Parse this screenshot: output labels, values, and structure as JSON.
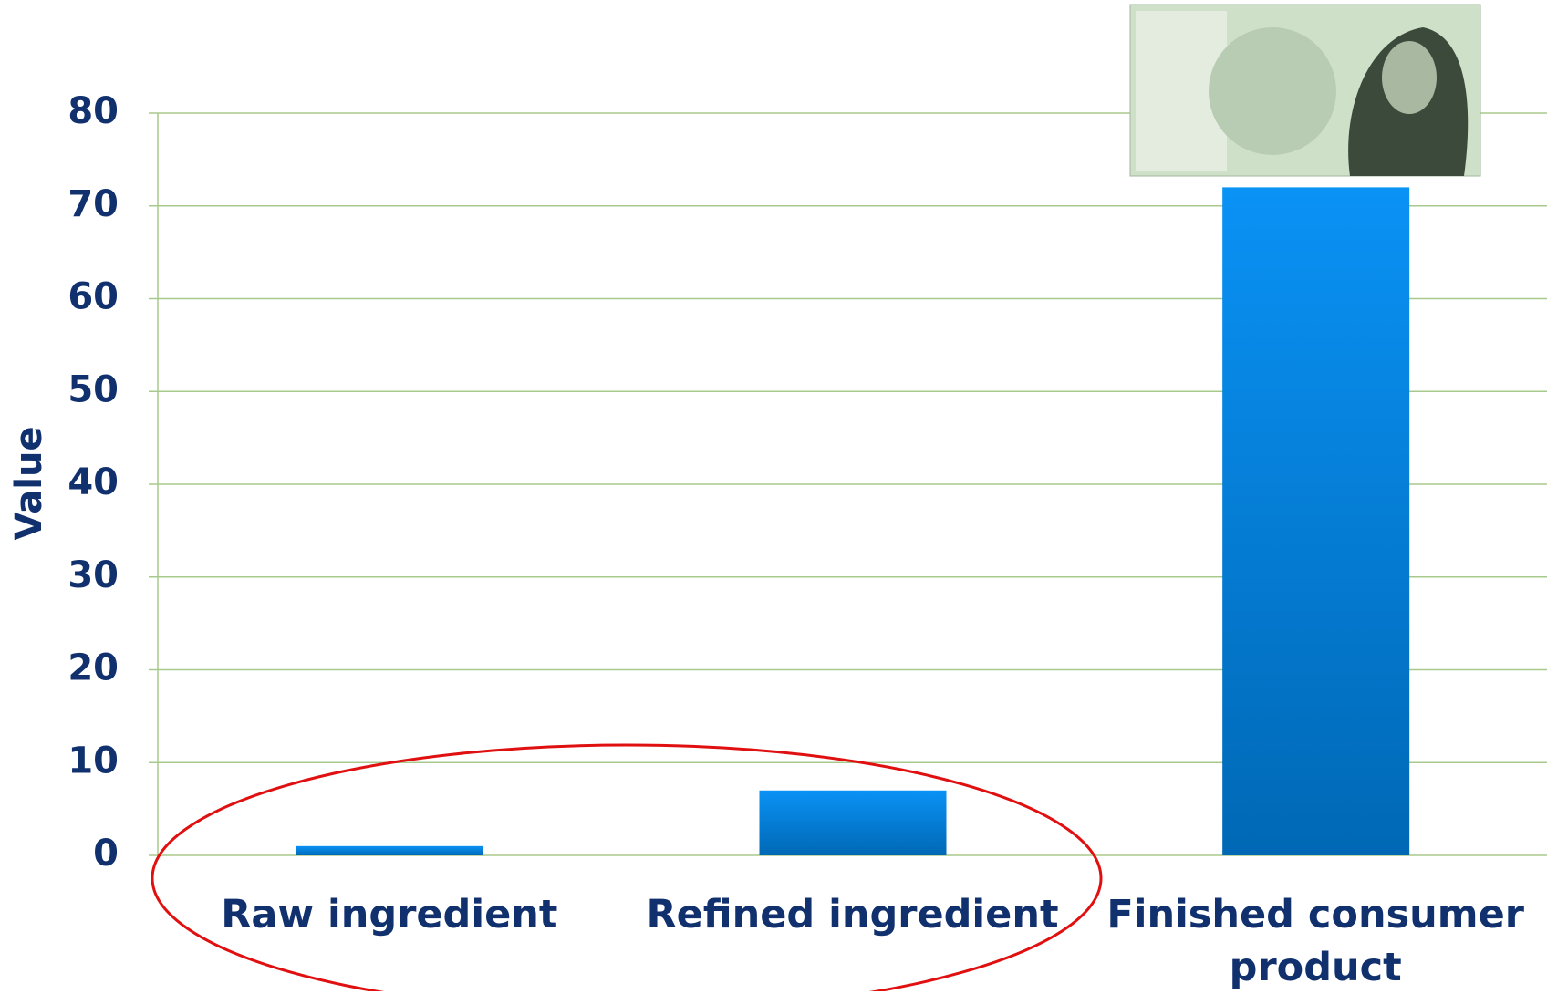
{
  "chart_data": {
    "type": "bar",
    "y_label": "Value",
    "categories": [
      "Raw ingredient",
      "Refined ingredient",
      "Finished consumer product"
    ],
    "values": [
      1,
      7,
      72
    ],
    "color": "#0070c0",
    "ylim": [
      0,
      80
    ],
    "yticks": [
      0,
      10,
      20,
      30,
      40,
      50,
      60,
      70,
      80
    ],
    "grid": true
  }
}
